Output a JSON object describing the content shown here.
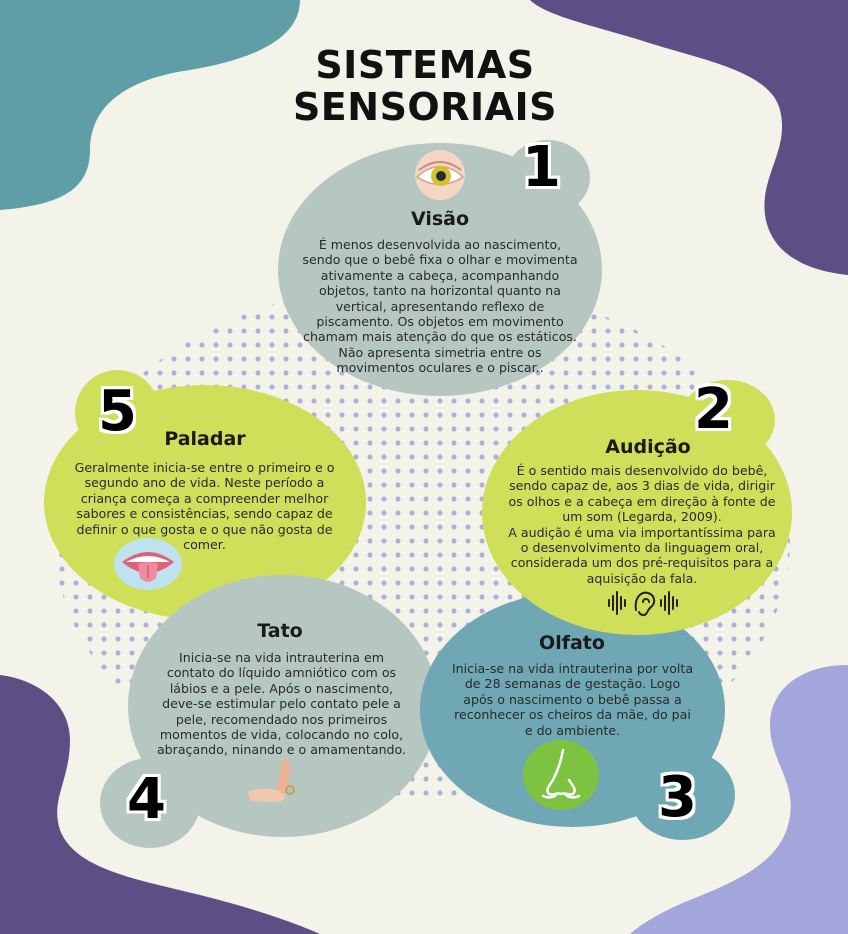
{
  "title_line1": "SISTEMAS",
  "title_line2": "SENSORIAIS",
  "colors": {
    "background": "#f3f3ea",
    "teal": "#5f9ea6",
    "purple": "#5d4f86",
    "lavender": "#a3a6db",
    "lime": "#cfdf5a",
    "sage": "#b6c7c2",
    "blue_teal": "#6fa7b4",
    "dots": "#aab0d8"
  },
  "sections": {
    "visao": {
      "number": "1",
      "heading": "Visão",
      "icon": "eye-icon",
      "lines": [
        "É menos desenvolvida ao nascimento,",
        "sendo que o bebê fixa o olhar e movimenta",
        "ativamente a cabeça, acompanhando",
        "objetos, tanto na horizontal quanto na",
        "vertical, apresentando reflexo de",
        "piscamento.  Os objetos em movimento",
        "chamam mais atenção do que os estáticos.",
        "Não apresenta simetria entre os",
        "movimentos oculares e o piscar.."
      ]
    },
    "audicao": {
      "number": "2",
      "heading": "Audição",
      "icon": "ear-sound-icon",
      "lines": [
        "É o sentido mais desenvolvido do bebê,",
        "sendo capaz de, aos 3 dias de vida, dirigir",
        "os olhos e a cabeça em direção à fonte de",
        "um som (Legarda, 2009).",
        "A audição é uma via importantíssima para",
        "o desenvolvimento da linguagem oral,",
        "considerada um dos pré-requisitos para a",
        "aquisição da fala."
      ]
    },
    "olfato": {
      "number": "3",
      "heading": "Olfato",
      "icon": "nose-icon",
      "lines": [
        "Inicia-se na vida intrauterina por volta",
        "de 28 semanas de gestação. Logo",
        "após o nascimento o bebê passa a",
        "reconhecer os cheiros da mãe, do pai",
        "e do ambiente."
      ]
    },
    "tato": {
      "number": "4",
      "heading": "Tato",
      "icon": "hands-touch-icon",
      "lines": [
        "Inicia-se na vida intrauterina em",
        "contato do líquido amniótico com os",
        "lábios e a pele. Após o nascimento,",
        "deve-se estimular pelo contato pele a",
        "pele, recomendado nos primeiros",
        "momentos de vida, colocando  no colo,",
        "abraçando, ninando e o amamentando."
      ]
    },
    "paladar": {
      "number": "5",
      "heading": "Paladar",
      "icon": "tongue-mouth-icon",
      "lines": [
        "Geralmente inicia-se entre o primeiro e o",
        "segundo ano de vida. Neste período a",
        "criança começa a compreender melhor",
        "sabores e consistências, sendo capaz de",
        "definir o que gosta e o que não gosta de",
        "comer."
      ]
    }
  }
}
